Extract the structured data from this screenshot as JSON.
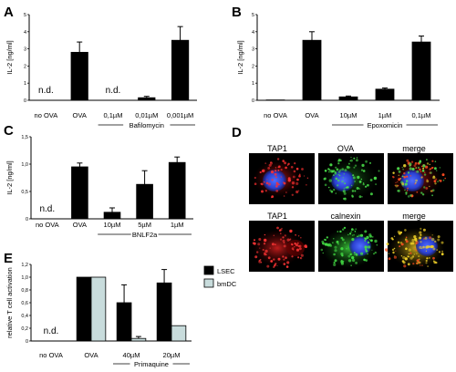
{
  "panels": {
    "A": "A",
    "B": "B",
    "C": "C",
    "D": "D",
    "E": "E"
  },
  "chart_data": [
    {
      "panel": "A",
      "type": "bar",
      "ylabel": "IL-2 [ng/ml]",
      "ylim": [
        0,
        5
      ],
      "yticks": [
        "0",
        "1",
        "2",
        "3",
        "4",
        "5"
      ],
      "categories": [
        "no OVA",
        "OVA",
        "0,1µM",
        "0,01µM",
        "0,001µM"
      ],
      "values": [
        null,
        2.8,
        null,
        0.15,
        3.5
      ],
      "errors": [
        null,
        0.6,
        null,
        0.08,
        0.8
      ],
      "annotations": [
        "n.d.",
        null,
        "n.d.",
        null,
        null
      ],
      "group_label": "Bafilomycin",
      "group_span": [
        2,
        4
      ]
    },
    {
      "panel": "B",
      "type": "bar",
      "ylabel": "IL-2 [ng/ml]",
      "ylim": [
        0,
        5
      ],
      "yticks": [
        "0",
        "1",
        "2",
        "3",
        "4",
        "5"
      ],
      "categories": [
        "no OVA",
        "OVA",
        "10µM",
        "1µM",
        "0,1µM"
      ],
      "values": [
        0.02,
        3.5,
        0.2,
        0.65,
        3.4
      ],
      "errors": [
        null,
        0.5,
        0.05,
        0.07,
        0.35
      ],
      "annotations": [
        null,
        null,
        null,
        null,
        null
      ],
      "group_label": "Epoxomicin",
      "group_span": [
        2,
        4
      ]
    },
    {
      "panel": "C",
      "type": "bar",
      "ylabel": "IL-2 [ng/ml]",
      "ylim": [
        0,
        1.5
      ],
      "yticks": [
        "0",
        "0,5",
        "1,0",
        "1,5"
      ],
      "categories": [
        "no OVA",
        "OVA",
        "10µM",
        "5µM",
        "1µM"
      ],
      "values": [
        null,
        0.95,
        0.12,
        0.63,
        1.03
      ],
      "errors": [
        null,
        0.07,
        0.08,
        0.25,
        0.1
      ],
      "annotations": [
        "n.d.",
        null,
        null,
        null,
        null
      ],
      "group_label": "BNLF2a",
      "group_span": [
        2,
        4
      ]
    },
    {
      "panel": "E",
      "type": "bar",
      "ylabel": "relative T cell activation",
      "ylim": [
        0,
        1.2
      ],
      "yticks": [
        "0",
        "0,2",
        "0,4",
        "0,6",
        "0,8",
        "1,0",
        "1,2"
      ],
      "categories": [
        "no OVA",
        "OVA",
        "40µM",
        "20µM"
      ],
      "series": [
        {
          "name": "LSEC",
          "color": "#000000",
          "values": [
            null,
            1.0,
            0.6,
            0.91
          ],
          "errors": [
            null,
            null,
            0.28,
            0.21
          ]
        },
        {
          "name": "bmDC",
          "color": "#c8dcdc",
          "values": [
            null,
            1.0,
            0.04,
            0.24
          ],
          "errors": [
            null,
            null,
            0.03,
            null
          ]
        }
      ],
      "annotations": [
        "n.d.",
        null,
        null,
        null
      ],
      "group_label": "Primaquine",
      "group_span": [
        2,
        3
      ],
      "legend": "top-right"
    }
  ],
  "microscopy": {
    "row1": [
      {
        "label": "TAP1",
        "color": "#e31a1c"
      },
      {
        "label": "OVA",
        "color": "#2bb32b"
      },
      {
        "label": "merge",
        "color": "#000000"
      }
    ],
    "row2": [
      {
        "label": "TAP1",
        "color": "#e31a1c"
      },
      {
        "label": "calnexin",
        "color": "#2bb32b"
      },
      {
        "label": "merge",
        "color": "#000000"
      }
    ]
  }
}
